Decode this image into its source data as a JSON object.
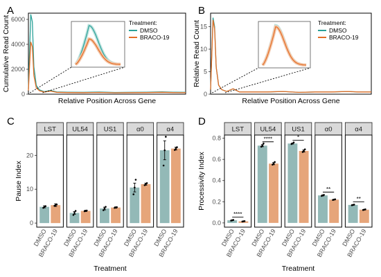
{
  "colors": {
    "dmso": "#2aa198",
    "braco": "#e36d25",
    "dmso_bar": "#93b9b7",
    "braco_bar": "#e6a57a",
    "dot": "#000000"
  },
  "panels": {
    "A": "A",
    "B": "B",
    "C": "C",
    "D": "D"
  },
  "chart_data": [
    {
      "id": "A",
      "type": "line",
      "xlabel": "Relative Position Across Gene",
      "ylabel": "Cumulative Read Count",
      "ylim": [
        0,
        6500
      ],
      "yticks": [
        "0",
        "2000",
        "4000",
        "6000"
      ],
      "legend": {
        "title": "Treatment:",
        "placement": "top-right",
        "entries": [
          "DMSO",
          "BRACO-19"
        ]
      },
      "inset": true,
      "series": [
        {
          "name": "DMSO",
          "x": [
            0,
            0.015,
            0.025,
            0.035,
            0.05,
            0.07,
            0.1,
            0.14,
            0.18,
            0.25,
            0.35,
            0.45,
            0.55,
            0.65,
            0.75,
            0.85,
            0.92,
            1.0
          ],
          "y": [
            400,
            6400,
            5800,
            2200,
            700,
            350,
            200,
            300,
            180,
            160,
            150,
            170,
            140,
            150,
            160,
            190,
            160,
            150
          ]
        },
        {
          "name": "BRACO-19",
          "x": [
            0,
            0.015,
            0.025,
            0.035,
            0.05,
            0.07,
            0.1,
            0.14,
            0.18,
            0.25,
            0.35,
            0.45,
            0.55,
            0.65,
            0.75,
            0.85,
            0.92,
            1.0
          ],
          "y": [
            300,
            4200,
            3800,
            1500,
            500,
            280,
            170,
            250,
            150,
            130,
            120,
            140,
            110,
            120,
            130,
            150,
            130,
            120
          ]
        }
      ]
    },
    {
      "id": "B",
      "type": "line",
      "xlabel": "Relative Position Across Gene",
      "ylabel": "Relative Read Count",
      "ylim": [
        0,
        18
      ],
      "yticks": [
        "0",
        "5",
        "10",
        "15"
      ],
      "legend": {
        "title": "Treatment:",
        "placement": "top-right",
        "entries": [
          "DMSO",
          "BRACO-19"
        ]
      },
      "inset": true,
      "series": [
        {
          "name": "DMSO",
          "x": [
            0,
            0.015,
            0.025,
            0.035,
            0.05,
            0.07,
            0.1,
            0.14,
            0.18,
            0.25,
            0.35,
            0.45,
            0.55,
            0.65,
            0.75,
            0.85,
            0.92,
            1.0
          ],
          "y": [
            1,
            17,
            15,
            6,
            2,
            1,
            0.6,
            1.2,
            0.5,
            0.5,
            0.5,
            0.6,
            0.4,
            0.5,
            0.5,
            0.6,
            0.5,
            0.5
          ]
        },
        {
          "name": "BRACO-19",
          "x": [
            0,
            0.015,
            0.025,
            0.035,
            0.05,
            0.07,
            0.1,
            0.14,
            0.18,
            0.25,
            0.35,
            0.45,
            0.55,
            0.65,
            0.75,
            0.85,
            0.92,
            1.0
          ],
          "y": [
            1,
            16.5,
            14.5,
            6,
            2,
            1,
            0.6,
            1.2,
            0.5,
            0.5,
            0.5,
            0.6,
            0.4,
            0.5,
            0.5,
            0.6,
            0.5,
            0.5
          ]
        }
      ]
    },
    {
      "id": "C",
      "type": "bar",
      "xlabel": "Treatment",
      "ylabel": "Pause Index",
      "ylim": [
        -1.2,
        26
      ],
      "yticks": [
        0,
        10,
        20
      ],
      "categories": [
        "DMSO",
        "BRACO-19"
      ],
      "facets": [
        {
          "label": "LST",
          "values": [
            4.8,
            5.3
          ],
          "se": [
            0.3,
            0.4
          ],
          "points": [
            [
              4.5,
              4.8,
              5.0
            ],
            [
              5.1,
              5.3,
              5.5
            ]
          ],
          "sig": ""
        },
        {
          "label": "UL54",
          "values": [
            3.0,
            3.6
          ],
          "se": [
            0.4,
            0.2
          ],
          "points": [
            [
              2.4,
              3.0,
              3.6
            ],
            [
              3.5,
              3.6,
              3.7
            ]
          ],
          "sig": ""
        },
        {
          "label": "US1",
          "values": [
            4.3,
            4.6
          ],
          "se": [
            0.4,
            0.2
          ],
          "points": [
            [
              3.8,
              4.3,
              4.8
            ],
            [
              4.5,
              4.6,
              4.7
            ]
          ],
          "sig": ""
        },
        {
          "label": "α0",
          "values": [
            10.5,
            11.5
          ],
          "se": [
            1.3,
            0.3
          ],
          "points": [
            [
              8.5,
              10.5,
              12.8
            ],
            [
              11.2,
              11.5,
              11.8
            ]
          ],
          "sig": ""
        },
        {
          "label": "α4",
          "values": [
            21.5,
            22.0
          ],
          "se": [
            2.8,
            0.4
          ],
          "points": [
            [
              17.0,
              21.5,
              25.5
            ],
            [
              21.6,
              22.0,
              22.4
            ]
          ],
          "sig": ""
        }
      ]
    },
    {
      "id": "D",
      "type": "bar",
      "xlabel": "Treatment",
      "ylabel": "Processivity Index",
      "ylim": [
        -0.04,
        0.83
      ],
      "yticks": [
        "0.0",
        "0.2",
        "0.4",
        "0.6",
        "0.8"
      ],
      "categories": [
        "DMSO",
        "BRACO-19"
      ],
      "facets": [
        {
          "label": "LST",
          "values": [
            0.025,
            0.015
          ],
          "se": [
            0.003,
            0.002
          ],
          "points": [
            [
              0.022,
              0.025,
              0.028
            ],
            [
              0.013,
              0.015,
              0.017
            ]
          ],
          "sig": "****"
        },
        {
          "label": "UL54",
          "values": [
            0.73,
            0.56
          ],
          "se": [
            0.01,
            0.01
          ],
          "points": [
            [
              0.72,
              0.73,
              0.75
            ],
            [
              0.55,
              0.56,
              0.575
            ]
          ],
          "sig": "****"
        },
        {
          "label": "US1",
          "values": [
            0.75,
            0.68
          ],
          "se": [
            0.005,
            0.01
          ],
          "points": [
            [
              0.745,
              0.75,
              0.76
            ],
            [
              0.67,
              0.68,
              0.695
            ]
          ],
          "sig": "*"
        },
        {
          "label": "α0",
          "values": [
            0.26,
            0.22
          ],
          "se": [
            0.005,
            0.003
          ],
          "points": [
            [
              0.255,
              0.26,
              0.265
            ],
            [
              0.217,
              0.22,
              0.223
            ]
          ],
          "sig": "**"
        },
        {
          "label": "α4",
          "values": [
            0.17,
            0.125
          ],
          "se": [
            0.003,
            0.003
          ],
          "points": [
            [
              0.167,
              0.17,
              0.173
            ],
            [
              0.122,
              0.125,
              0.128
            ]
          ],
          "sig": "**"
        }
      ]
    }
  ]
}
